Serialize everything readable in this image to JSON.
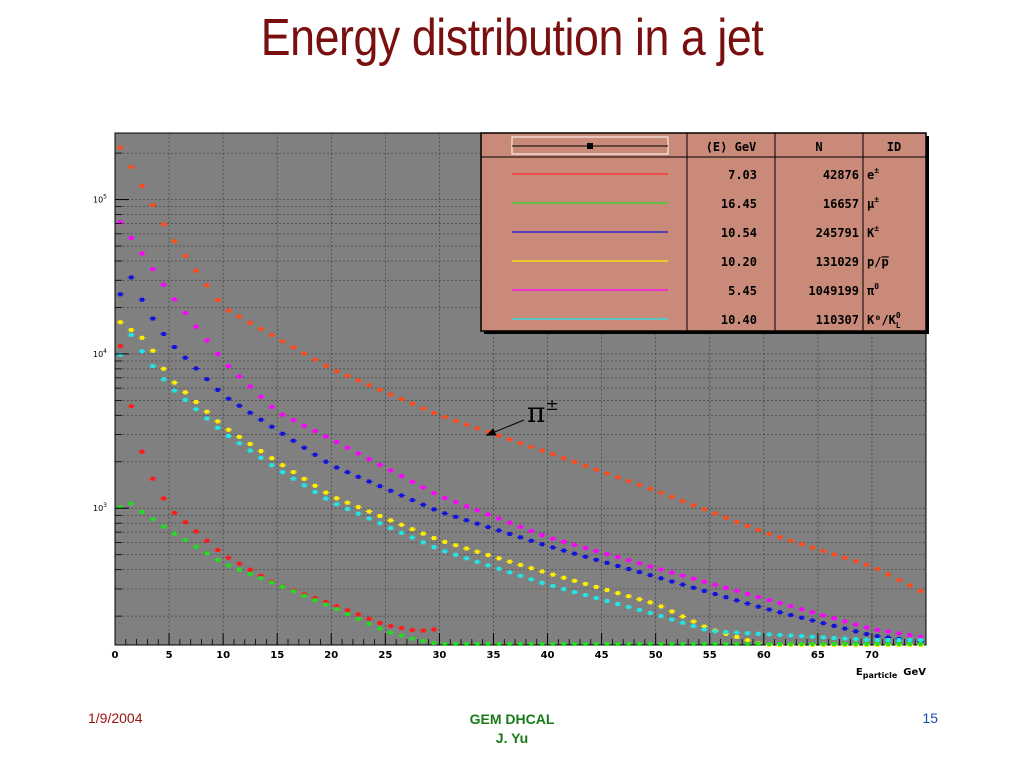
{
  "slide": {
    "title": "Energy distribution in a jet",
    "footer_date": "1/9/2004",
    "footer_line1": "GEM DHCAL",
    "footer_line2": "J. Yu",
    "page_number": "15"
  },
  "chart_data": {
    "type": "scatter",
    "xlabel_main": "E",
    "xlabel_sub": "particle",
    "xlabel_unit": "GeV",
    "xlim": [
      0,
      75
    ],
    "ylim": [
      130,
      270000
    ],
    "yscale": "log",
    "xticks": [
      0,
      5,
      10,
      15,
      20,
      25,
      30,
      35,
      40,
      45,
      50,
      55,
      60,
      65,
      70
    ],
    "yticks": [
      {
        "value": 1000,
        "base": "10",
        "exp": "3"
      },
      {
        "value": 10000,
        "base": "10",
        "exp": "4"
      },
      {
        "value": 100000,
        "base": "10",
        "exp": "5"
      }
    ],
    "grid": true,
    "background": "#808080",
    "annotation": {
      "base": "π",
      "sup": "±",
      "points_to": [
        34,
        2800
      ]
    },
    "legend": {
      "placement": "top-right",
      "headers": [
        "⟨E⟩ GeV",
        "N",
        "ID"
      ],
      "rows": [
        {
          "mean": "7.03",
          "n": "42876",
          "id": "e",
          "id_sup": "±",
          "id_sub": "",
          "color": "#ff2a2a"
        },
        {
          "mean": "16.45",
          "n": "16657",
          "id": "μ",
          "id_sup": "±",
          "id_sub": "",
          "color": "#22dd22"
        },
        {
          "mean": "10.54",
          "n": "245791",
          "id": "K",
          "id_sup": "±",
          "id_sub": "",
          "color": "#1111dd"
        },
        {
          "mean": "10.20",
          "n": "131029",
          "id": "p/p̅",
          "id_sup": "",
          "id_sub": "",
          "color": "#ffee00"
        },
        {
          "mean": "5.45",
          "n": "1049199",
          "id": "π",
          "id_sup": "0",
          "id_sub": "",
          "color": "#ff00ff"
        },
        {
          "mean": "10.40",
          "n": "110307",
          "id": "K⁰/K",
          "id_sup": "0",
          "id_sub": "L",
          "color": "#22e5e5"
        }
      ]
    },
    "series": [
      {
        "name": "pi_pm",
        "color": "#ff4a1a",
        "step": 1,
        "xmax": 75,
        "anchors": [
          [
            0,
            250000
          ],
          [
            5,
            60000
          ],
          [
            10,
            20000
          ],
          [
            20,
            8000
          ],
          [
            30,
            4000
          ],
          [
            40,
            2300
          ],
          [
            50,
            1300
          ],
          [
            60,
            700
          ],
          [
            70,
            420
          ],
          [
            75,
            280
          ]
        ]
      },
      {
        "name": "pi0",
        "color": "#ff00ff",
        "step": 1,
        "xmax": 75,
        "anchors": [
          [
            0,
            80000
          ],
          [
            5,
            25000
          ],
          [
            10,
            9000
          ],
          [
            15,
            4200
          ],
          [
            20,
            2800
          ],
          [
            30,
            1200
          ],
          [
            40,
            650
          ],
          [
            50,
            410
          ],
          [
            60,
            260
          ],
          [
            70,
            165
          ],
          [
            75,
            145
          ]
        ]
      },
      {
        "name": "K_pm",
        "color": "#1111dd",
        "step": 1,
        "xmax": 75,
        "anchors": [
          [
            0,
            16000
          ],
          [
            1,
            37000
          ],
          [
            3,
            19000
          ],
          [
            5,
            12000
          ],
          [
            10,
            5400
          ],
          [
            15,
            3200
          ],
          [
            20,
            1900
          ],
          [
            30,
            950
          ],
          [
            40,
            570
          ],
          [
            50,
            360
          ],
          [
            60,
            225
          ],
          [
            70,
            150
          ],
          [
            75,
            135
          ]
        ]
      },
      {
        "name": "p_pbar",
        "color": "#ffee00",
        "step": 1,
        "xmax": 75,
        "anchors": [
          [
            0,
            17000
          ],
          [
            3,
            12000
          ],
          [
            5,
            7000
          ],
          [
            10,
            3400
          ],
          [
            15,
            2000
          ],
          [
            20,
            1200
          ],
          [
            30,
            620
          ],
          [
            40,
            380
          ],
          [
            50,
            240
          ],
          [
            55,
            165
          ],
          [
            60,
            130
          ]
        ]
      },
      {
        "name": "K0_K0L",
        "color": "#22e5e5",
        "step": 1,
        "xmax": 75,
        "anchors": [
          [
            0,
            6500
          ],
          [
            1,
            15000
          ],
          [
            3,
            9200
          ],
          [
            5,
            6200
          ],
          [
            10,
            3100
          ],
          [
            15,
            1800
          ],
          [
            20,
            1100
          ],
          [
            30,
            540
          ],
          [
            40,
            320
          ],
          [
            50,
            205
          ],
          [
            55,
            160
          ],
          [
            70,
            140
          ],
          [
            75,
            140
          ]
        ]
      },
      {
        "name": "e_pm",
        "color": "#ff1a1a",
        "step": 1,
        "xmax": 30,
        "anchors": [
          [
            0,
            18000
          ],
          [
            1,
            7000
          ],
          [
            2,
            3000
          ],
          [
            3,
            1800
          ],
          [
            5,
            1000
          ],
          [
            10,
            500
          ],
          [
            15,
            320
          ],
          [
            20,
            240
          ],
          [
            25,
            175
          ],
          [
            28,
            160
          ],
          [
            30,
            165
          ]
        ]
      },
      {
        "name": "mu_pm",
        "color": "#22dd22",
        "step": 1,
        "xmax": 75,
        "anchors": [
          [
            0,
            900
          ],
          [
            1,
            1150
          ],
          [
            2,
            1000
          ],
          [
            5,
            720
          ],
          [
            10,
            440
          ],
          [
            15,
            320
          ],
          [
            20,
            230
          ],
          [
            25,
            160
          ],
          [
            28,
            140
          ],
          [
            30,
            132
          ],
          [
            75,
            132
          ]
        ]
      }
    ]
  }
}
